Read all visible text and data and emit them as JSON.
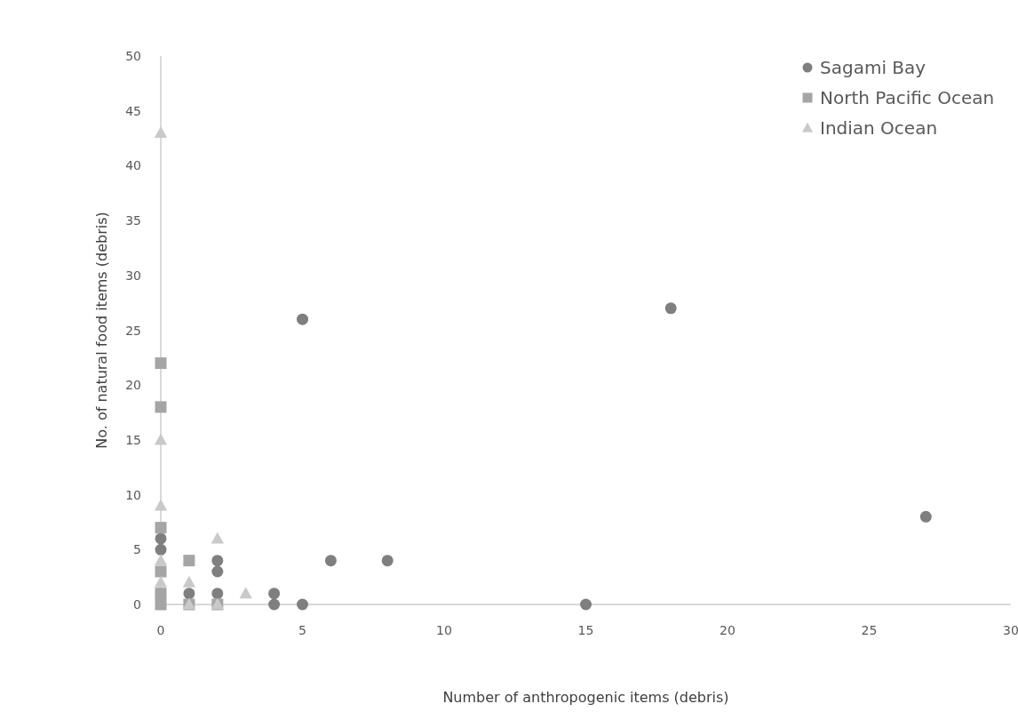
{
  "chart_data": {
    "type": "scatter",
    "xlabel": "Number of anthropogenic items (debris)",
    "ylabel": "No. of natural food items (debris)",
    "xlim": [
      0,
      30
    ],
    "xticks": [
      0,
      5,
      10,
      15,
      20,
      25,
      30
    ],
    "ylim": [
      0,
      50
    ],
    "yticks": [
      0,
      5,
      10,
      15,
      20,
      25,
      30,
      35,
      40,
      45,
      50
    ],
    "grid": false,
    "legend": "top right",
    "series": [
      {
        "name": "Sagami Bay",
        "color": "#7f7f7f",
        "marker": "circle",
        "x": [
          0,
          0,
          1,
          2,
          2,
          2,
          4,
          4,
          5,
          5,
          6,
          8,
          15,
          18,
          27
        ],
        "values": [
          6,
          5,
          1,
          4,
          3,
          1,
          1,
          0,
          0,
          26,
          4,
          4,
          0,
          27,
          8
        ]
      },
      {
        "name": "North Pacific Ocean",
        "color": "#a5a5a5",
        "marker": "square",
        "x": [
          0,
          0,
          0,
          0,
          0,
          0,
          1,
          1,
          2
        ],
        "values": [
          22,
          18,
          7,
          3,
          1,
          0,
          4,
          0,
          0
        ]
      },
      {
        "name": "Indian Ocean",
        "color": "#c9c9c9",
        "marker": "triangle",
        "x": [
          0,
          0,
          0,
          0,
          0,
          1,
          1,
          2,
          2,
          3
        ],
        "values": [
          43,
          15,
          9,
          4,
          2,
          2,
          0,
          6,
          0,
          1
        ]
      }
    ]
  }
}
